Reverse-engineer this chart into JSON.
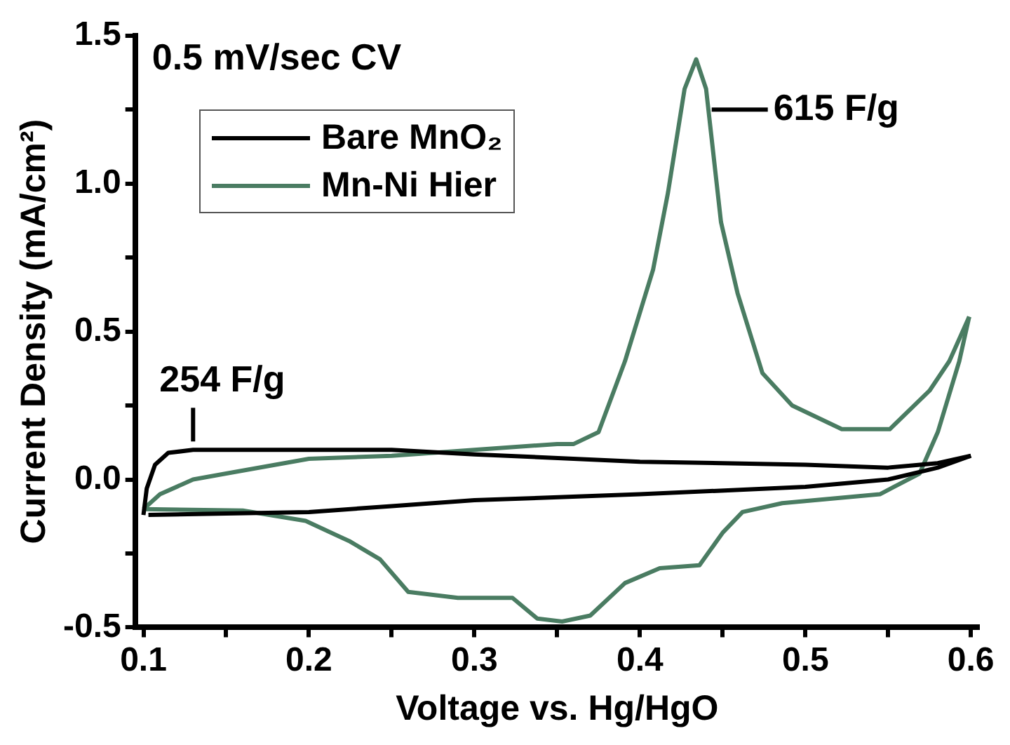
{
  "chart_data": {
    "type": "line",
    "xlabel": "Voltage vs. Hg/HgO",
    "ylabel": "Current Density (mA/cm²)",
    "xlim": [
      0.095,
      0.605
    ],
    "ylim": [
      -0.5,
      1.5
    ],
    "xticks": [
      0.1,
      {
        "value": 0.15,
        "label": null
      },
      0.2,
      {
        "value": 0.25,
        "label": null
      },
      0.3,
      {
        "value": 0.35,
        "label": null
      },
      0.4,
      {
        "value": 0.45,
        "label": null
      },
      0.5,
      {
        "value": 0.55,
        "label": null
      },
      0.6
    ],
    "yticks": [
      -0.5,
      {
        "value": -0.25,
        "label": null
      },
      {
        "value": 0,
        "label": "0.0"
      },
      {
        "value": 0.25,
        "label": null
      },
      0.5,
      {
        "value": 0.75,
        "label": null
      },
      {
        "value": 1,
        "label": "1.0"
      },
      {
        "value": 1.25,
        "label": null
      },
      1.5
    ],
    "legend": "top left",
    "marker": "none",
    "annotations": [
      "0.5 mV/sec CV",
      {
        "text": "254 F/g",
        "x": 0.13,
        "y": 0.1
      },
      {
        "text": "615 F/g",
        "x": 0.44,
        "y": 1.25
      }
    ],
    "series": [
      {
        "name": "Bare MnO₂",
        "color": "#000000",
        "x": [
          0.1,
          0.102,
          0.107,
          0.115,
          0.13,
          0.2,
          0.25,
          0.3,
          0.4,
          0.5,
          0.55,
          0.58,
          0.6
        ],
        "values": [
          -0.12,
          -0.03,
          0.05,
          0.09,
          0.1,
          0.1,
          0.1,
          0.085,
          0.06,
          0.05,
          0.04,
          0.055,
          0.08
        ]
      },
      {
        "color": "#000000",
        "x": [
          0.6,
          0.58,
          0.55,
          0.5,
          0.4,
          0.3,
          0.25,
          0.2,
          0.15,
          0.103
        ],
        "values": [
          0.08,
          0.04,
          0.0,
          -0.025,
          -0.05,
          -0.07,
          -0.09,
          -0.11,
          -0.115,
          -0.12
        ]
      },
      {
        "name": "Mn-Ni Hier",
        "color": "#4a7c62",
        "x": [
          0.1,
          0.11,
          0.13,
          0.15,
          0.2,
          0.25,
          0.3,
          0.35,
          0.36,
          0.375,
          0.391,
          0.408,
          0.417,
          0.427,
          0.434,
          0.44,
          0.449,
          0.459,
          0.474,
          0.492,
          0.522,
          0.551,
          0.575,
          0.587,
          0.599
        ],
        "values": [
          -0.1,
          -0.05,
          0.0,
          0.02,
          0.07,
          0.08,
          0.1,
          0.12,
          0.12,
          0.16,
          0.4,
          0.71,
          0.97,
          1.32,
          1.42,
          1.32,
          0.87,
          0.63,
          0.36,
          0.25,
          0.17,
          0.17,
          0.3,
          0.4,
          0.55
        ]
      },
      {
        "color": "#4a7c62",
        "x": [
          0.599,
          0.593,
          0.58,
          0.569,
          0.545,
          0.486,
          0.462,
          0.45,
          0.436,
          0.412,
          0.391,
          0.37,
          0.353,
          0.338,
          0.323,
          0.29,
          0.26,
          0.243,
          0.225,
          0.198,
          0.16,
          0.1
        ],
        "values": [
          0.55,
          0.4,
          0.16,
          0.02,
          -0.05,
          -0.08,
          -0.11,
          -0.18,
          -0.29,
          -0.3,
          -0.35,
          -0.46,
          -0.48,
          -0.47,
          -0.4,
          -0.4,
          -0.38,
          -0.27,
          -0.21,
          -0.14,
          -0.105,
          -0.1
        ]
      }
    ]
  }
}
